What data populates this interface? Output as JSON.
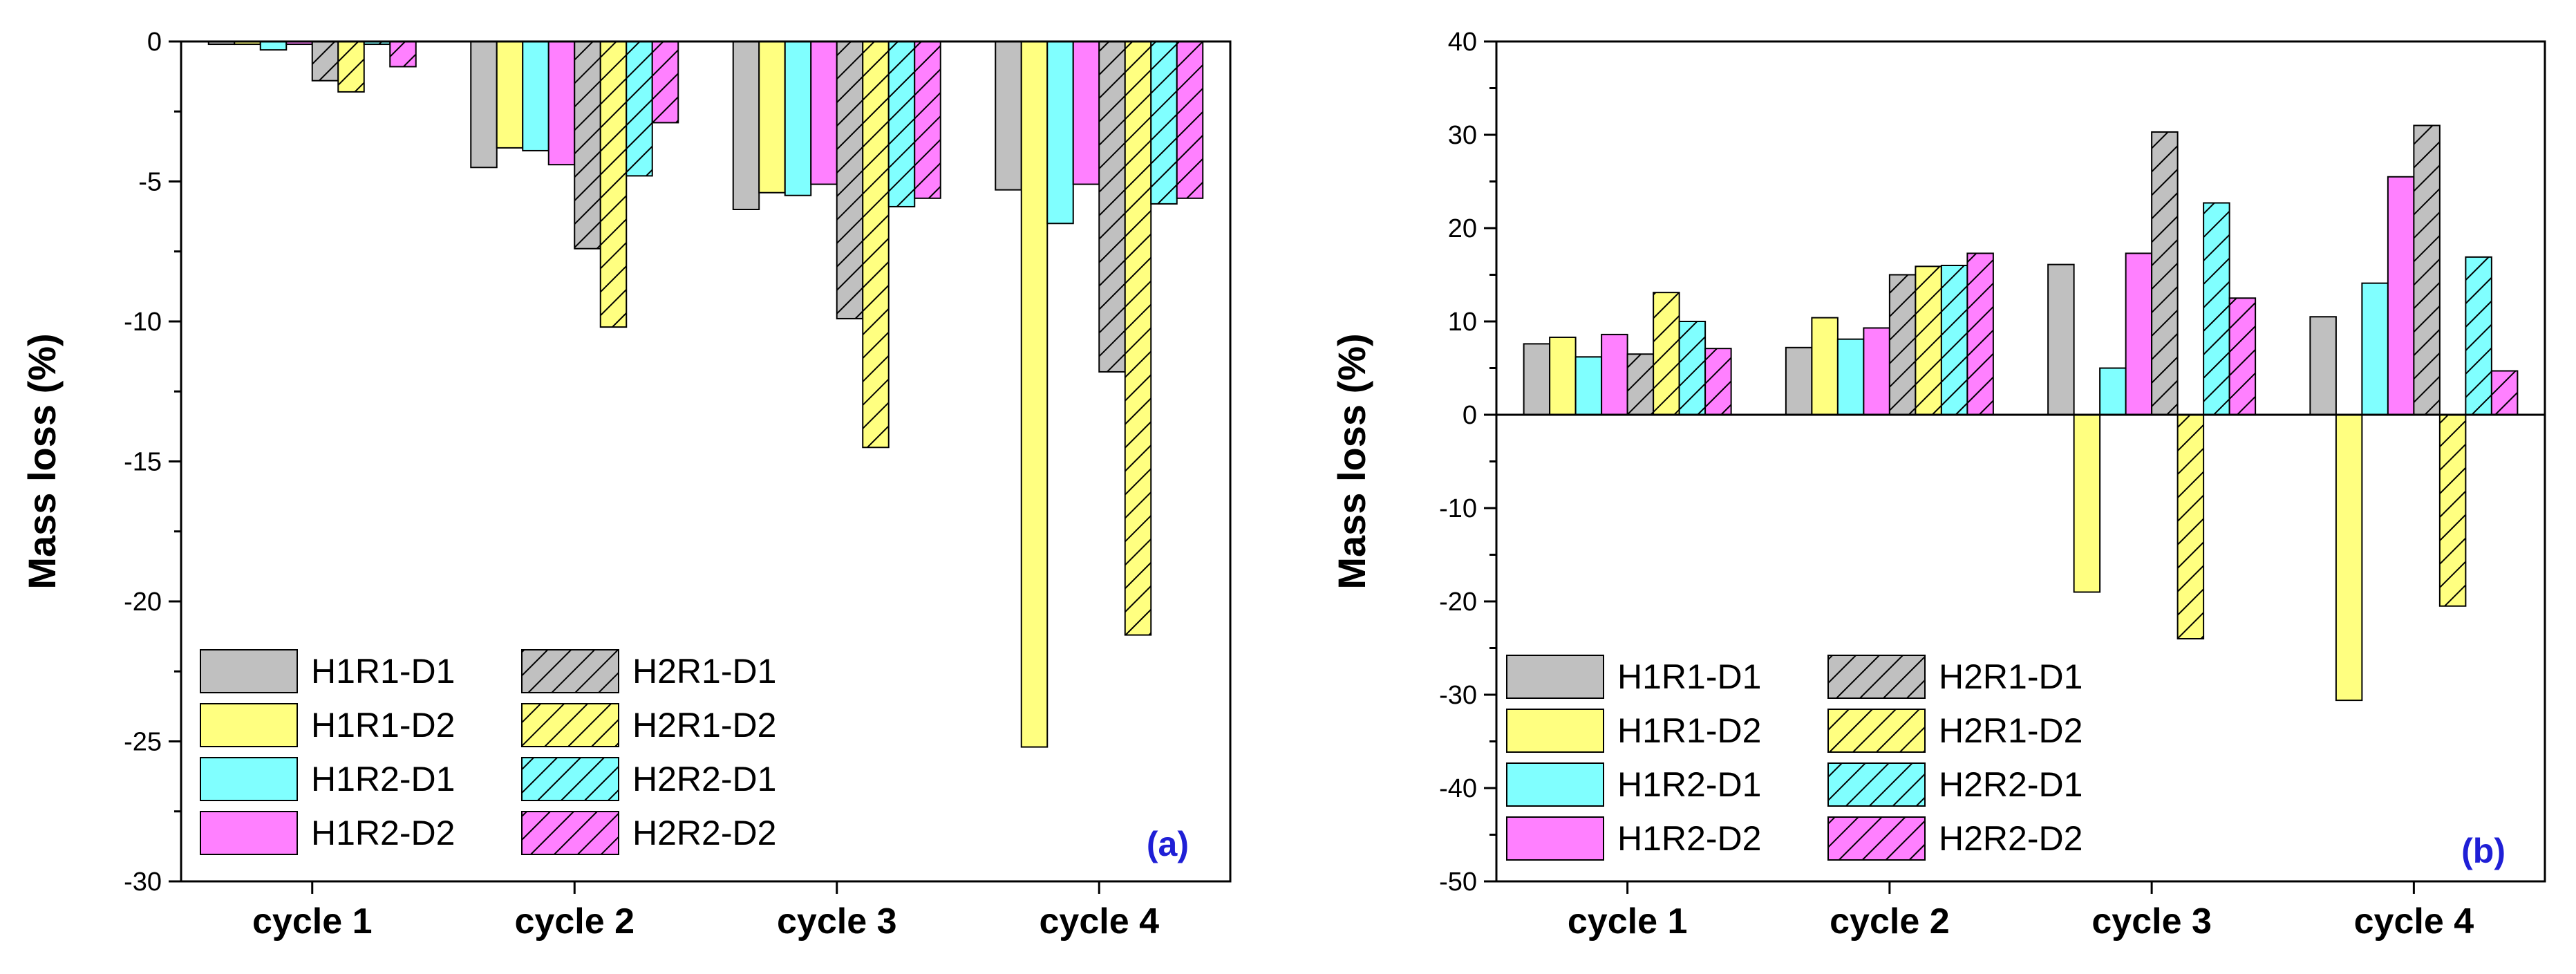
{
  "chart_data": [
    {
      "type": "bar",
      "panel_label": "(a)",
      "ylabel": "Mass loss (%)",
      "ylim": [
        -30,
        0
      ],
      "yticks": [
        0,
        -5,
        -10,
        -15,
        -20,
        -25,
        -30
      ],
      "categories": [
        "cycle 1",
        "cycle 2",
        "cycle 3",
        "cycle 4"
      ],
      "legend_position": "bottom-left",
      "series": [
        {
          "name": "H1R1-D1",
          "color": "#c0c0c0",
          "hatched": false,
          "values": [
            -0.1,
            -4.5,
            -6.0,
            -5.3
          ]
        },
        {
          "name": "H1R1-D2",
          "color": "#ffff80",
          "hatched": false,
          "values": [
            -0.1,
            -3.8,
            -5.4,
            -25.2
          ]
        },
        {
          "name": "H1R2-D1",
          "color": "#80ffff",
          "hatched": false,
          "values": [
            -0.3,
            -3.9,
            -5.5,
            -6.5
          ]
        },
        {
          "name": "H1R2-D2",
          "color": "#ff80ff",
          "hatched": false,
          "values": [
            -0.1,
            -4.4,
            -5.1,
            -5.1
          ]
        },
        {
          "name": "H2R1-D1",
          "color": "#c0c0c0",
          "hatched": true,
          "values": [
            -1.4,
            -7.4,
            -9.9,
            -11.8
          ]
        },
        {
          "name": "H2R1-D2",
          "color": "#ffff80",
          "hatched": true,
          "values": [
            -1.8,
            -10.2,
            -14.5,
            -21.2
          ]
        },
        {
          "name": "H2R2-D1",
          "color": "#80ffff",
          "hatched": true,
          "values": [
            -0.1,
            -4.8,
            -5.9,
            -5.8
          ]
        },
        {
          "name": "H2R2-D2",
          "color": "#ff80ff",
          "hatched": true,
          "values": [
            -0.9,
            -2.9,
            -5.6,
            -5.6
          ]
        }
      ]
    },
    {
      "type": "bar",
      "panel_label": "(b)",
      "ylabel": "Mass loss (%)",
      "ylim": [
        -50,
        40
      ],
      "yticks": [
        40,
        30,
        20,
        10,
        0,
        -10,
        -20,
        -30,
        -40,
        -50
      ],
      "categories": [
        "cycle 1",
        "cycle 2",
        "cycle 3",
        "cycle 4"
      ],
      "legend_position": "bottom-left",
      "series": [
        {
          "name": "H1R1-D1",
          "color": "#c0c0c0",
          "hatched": false,
          "values": [
            7.6,
            7.2,
            16.1,
            10.5
          ]
        },
        {
          "name": "H1R1-D2",
          "color": "#ffff80",
          "hatched": false,
          "values": [
            8.3,
            10.4,
            -19.0,
            -30.6
          ]
        },
        {
          "name": "H1R2-D1",
          "color": "#80ffff",
          "hatched": false,
          "values": [
            6.2,
            8.1,
            5.0,
            14.1
          ]
        },
        {
          "name": "H1R2-D2",
          "color": "#ff80ff",
          "hatched": false,
          "values": [
            8.6,
            9.3,
            17.3,
            25.5
          ]
        },
        {
          "name": "H2R1-D1",
          "color": "#c0c0c0",
          "hatched": true,
          "values": [
            6.5,
            15.0,
            30.3,
            31.0
          ]
        },
        {
          "name": "H2R1-D2",
          "color": "#ffff80",
          "hatched": true,
          "values": [
            13.1,
            15.9,
            -24.0,
            -20.5
          ]
        },
        {
          "name": "H2R2-D1",
          "color": "#80ffff",
          "hatched": true,
          "values": [
            10.0,
            16.0,
            22.7,
            16.9
          ]
        },
        {
          "name": "H2R2-D2",
          "color": "#ff80ff",
          "hatched": true,
          "values": [
            7.1,
            17.3,
            12.5,
            4.7
          ]
        }
      ]
    }
  ]
}
